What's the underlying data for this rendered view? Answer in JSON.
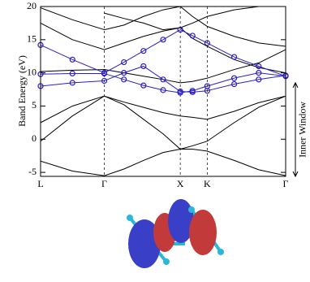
{
  "chart_data": {
    "type": "line",
    "ylabel": "Band Energy (eV)",
    "x": [
      0,
      0.13,
      0.26,
      0.34,
      0.42,
      0.5,
      0.57,
      0.62,
      0.68,
      0.79,
      0.89,
      1
    ],
    "xlim": [
      0,
      1
    ],
    "xticks": [
      {
        "value": 0,
        "label": "L"
      },
      {
        "value": 0.26,
        "label": "Γ"
      },
      {
        "value": 0.57,
        "label": "X"
      },
      {
        "value": 0.68,
        "label": "K"
      },
      {
        "value": 1,
        "label": "Γ"
      }
    ],
    "xgrid": true,
    "ylim": [
      -5.6,
      20
    ],
    "yticks": [
      -5,
      0,
      5,
      10,
      15,
      20
    ],
    "series": [
      {
        "color": "#000000",
        "values": [
          -3.3,
          -4.8,
          -5.5,
          -4.5,
          -3.2,
          -2.0,
          -1.5,
          -1.5,
          -1.8,
          -3.2,
          -4.6,
          -5.5
        ]
      },
      {
        "color": "#000000",
        "values": [
          -0.3,
          3.5,
          6.5,
          5.2,
          3.0,
          0.8,
          -1.5,
          -1.0,
          -0.3,
          2.5,
          4.8,
          6.5
        ]
      },
      {
        "color": "#000000",
        "values": [
          2.5,
          5.0,
          6.5,
          5.6,
          4.8,
          4.0,
          3.5,
          3.3,
          3.0,
          4.2,
          5.5,
          6.5
        ]
      },
      {
        "color": "#000000",
        "values": [
          10.2,
          10.4,
          10.5,
          10.0,
          9.5,
          9.0,
          8.5,
          8.7,
          9.2,
          10.5,
          11.5,
          13.5
        ]
      },
      {
        "color": "#000000",
        "values": [
          17.5,
          15.0,
          13.5,
          14.5,
          15.5,
          16.3,
          16.8,
          15.2,
          14.0,
          12.0,
          10.8,
          10.0
        ]
      },
      {
        "color": "#000000",
        "values": [
          19.8,
          18.0,
          16.5,
          17.2,
          18.5,
          19.5,
          20.0,
          18.5,
          17.0,
          15.5,
          14.5,
          14.0
        ]
      },
      {
        "color": "#000000",
        "values": [
          null,
          null,
          19.0,
          18.2,
          17.5,
          16.5,
          16.8,
          17.5,
          18.5,
          19.5,
          20.0,
          null
        ]
      },
      {
        "color": "#2a1fc4",
        "marker": "circle",
        "values": [
          14.2,
          12.0,
          10.0,
          11.6,
          13.3,
          15.0,
          16.5,
          15.6,
          14.5,
          12.4,
          11.0,
          9.5
        ]
      },
      {
        "color": "#2a1fc4",
        "marker": "circle",
        "values": [
          9.8,
          9.9,
          9.9,
          9.0,
          8.1,
          7.4,
          7.0,
          7.3,
          8.0,
          9.2,
          10.0,
          9.5
        ]
      },
      {
        "color": "#2a1fc4",
        "marker": "circle",
        "values": [
          8.0,
          8.5,
          8.8,
          10.0,
          11.0,
          9.0,
          7.2,
          7.1,
          7.3,
          8.3,
          9.0,
          9.6
        ]
      }
    ],
    "annotation": {
      "text": "Inner Window",
      "range": [
        8.5,
        -5.6
      ]
    }
  }
}
